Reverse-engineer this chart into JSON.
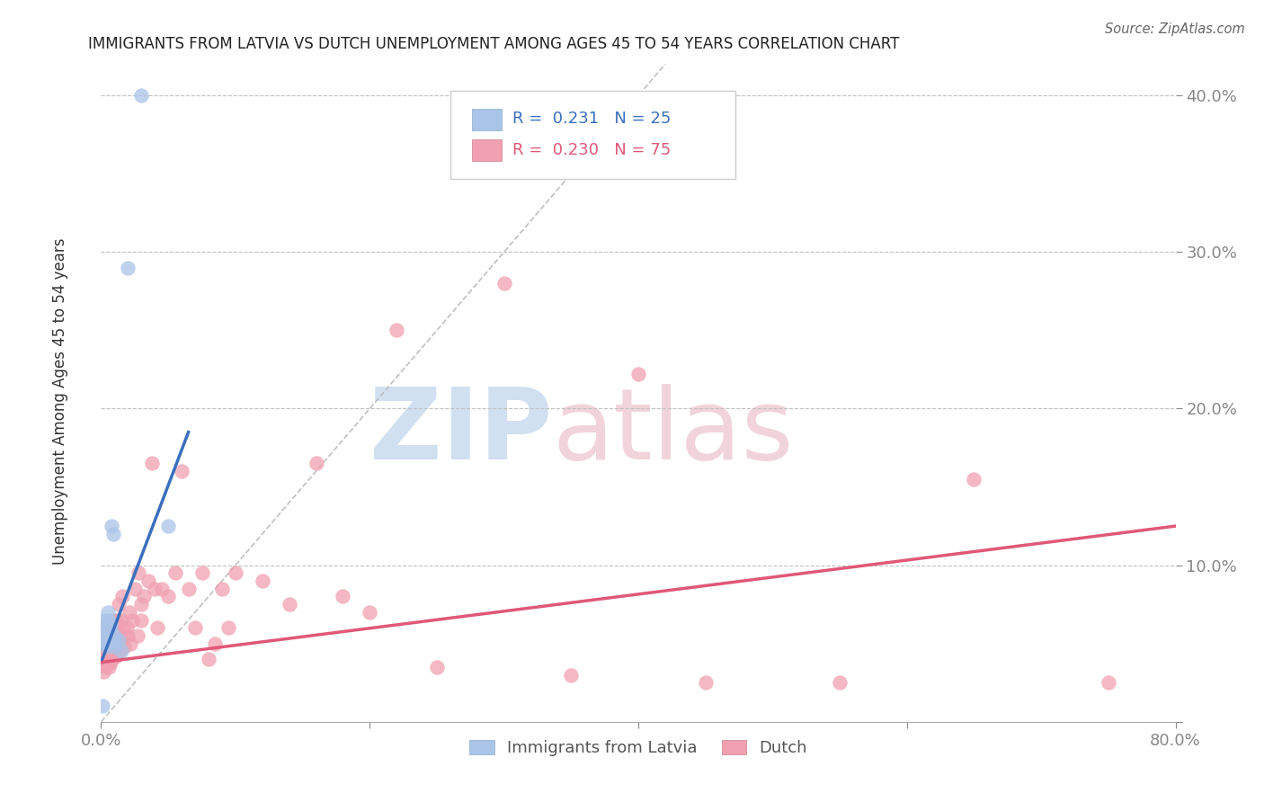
{
  "title": "IMMIGRANTS FROM LATVIA VS DUTCH UNEMPLOYMENT AMONG AGES 45 TO 54 YEARS CORRELATION CHART",
  "source": "Source: ZipAtlas.com",
  "ylabel": "Unemployment Among Ages 45 to 54 years",
  "xlim": [
    0.0,
    0.8
  ],
  "ylim": [
    0.0,
    0.42
  ],
  "yticks": [
    0.0,
    0.1,
    0.2,
    0.3,
    0.4
  ],
  "ytick_labels": [
    "",
    "10.0%",
    "20.0%",
    "30.0%",
    "40.0%"
  ],
  "xticks": [
    0.0,
    0.2,
    0.4,
    0.6,
    0.8
  ],
  "xtick_labels": [
    "0.0%",
    "",
    "",
    "",
    "80.0%"
  ],
  "legend_blue_label": "Immigrants from Latvia",
  "legend_pink_label": "Dutch",
  "R_blue": 0.231,
  "N_blue": 25,
  "R_pink": 0.23,
  "N_pink": 75,
  "blue_color": "#aac4e8",
  "blue_line_color": "#3a6fbd",
  "pink_color": "#f0a0b0",
  "pink_line_color": "#e05878",
  "blue_scatter_x": [
    0.001,
    0.002,
    0.002,
    0.003,
    0.003,
    0.003,
    0.004,
    0.004,
    0.005,
    0.005,
    0.006,
    0.006,
    0.007,
    0.007,
    0.008,
    0.009,
    0.01,
    0.01,
    0.011,
    0.013,
    0.015,
    0.02,
    0.03,
    0.05,
    0.001
  ],
  "blue_scatter_y": [
    0.055,
    0.06,
    0.065,
    0.05,
    0.055,
    0.06,
    0.048,
    0.052,
    0.07,
    0.065,
    0.055,
    0.058,
    0.06,
    0.063,
    0.125,
    0.12,
    0.055,
    0.048,
    0.05,
    0.052,
    0.045,
    0.29,
    0.4,
    0.125,
    0.01
  ],
  "pink_scatter_x": [
    0.001,
    0.001,
    0.002,
    0.002,
    0.002,
    0.003,
    0.003,
    0.003,
    0.004,
    0.004,
    0.005,
    0.005,
    0.005,
    0.006,
    0.006,
    0.007,
    0.007,
    0.008,
    0.008,
    0.009,
    0.01,
    0.01,
    0.01,
    0.011,
    0.012,
    0.012,
    0.013,
    0.013,
    0.014,
    0.015,
    0.015,
    0.016,
    0.017,
    0.018,
    0.019,
    0.02,
    0.021,
    0.022,
    0.023,
    0.025,
    0.027,
    0.028,
    0.03,
    0.03,
    0.032,
    0.035,
    0.038,
    0.04,
    0.042,
    0.045,
    0.05,
    0.055,
    0.06,
    0.065,
    0.07,
    0.075,
    0.08,
    0.085,
    0.09,
    0.095,
    0.1,
    0.12,
    0.14,
    0.16,
    0.18,
    0.2,
    0.22,
    0.25,
    0.3,
    0.35,
    0.4,
    0.45,
    0.55,
    0.65,
    0.75
  ],
  "pink_scatter_y": [
    0.05,
    0.042,
    0.038,
    0.032,
    0.048,
    0.035,
    0.04,
    0.045,
    0.038,
    0.042,
    0.04,
    0.048,
    0.055,
    0.035,
    0.042,
    0.038,
    0.055,
    0.04,
    0.048,
    0.052,
    0.045,
    0.058,
    0.065,
    0.042,
    0.06,
    0.065,
    0.055,
    0.075,
    0.045,
    0.06,
    0.065,
    0.08,
    0.048,
    0.055,
    0.06,
    0.055,
    0.07,
    0.05,
    0.065,
    0.085,
    0.055,
    0.095,
    0.065,
    0.075,
    0.08,
    0.09,
    0.165,
    0.085,
    0.06,
    0.085,
    0.08,
    0.095,
    0.16,
    0.085,
    0.06,
    0.095,
    0.04,
    0.05,
    0.085,
    0.06,
    0.095,
    0.09,
    0.075,
    0.165,
    0.08,
    0.07,
    0.25,
    0.035,
    0.28,
    0.03,
    0.222,
    0.025,
    0.025,
    0.155,
    0.025
  ],
  "blue_line_x": [
    0.0,
    0.065
  ],
  "blue_line_y_start": 0.038,
  "blue_line_y_end": 0.185,
  "pink_line_x": [
    0.0,
    0.8
  ],
  "pink_line_y_start": 0.038,
  "pink_line_y_end": 0.125
}
